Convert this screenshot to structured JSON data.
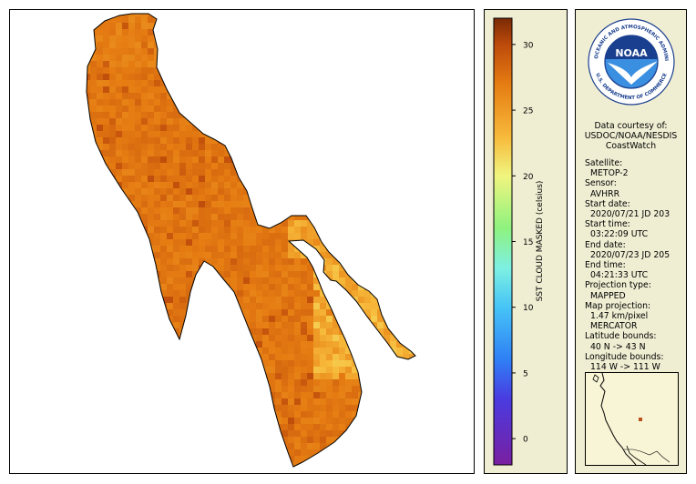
{
  "map": {
    "fill_color": "#d9650f",
    "coastline_color": "#000000"
  },
  "colorbar": {
    "label": "SST CLOUD MASKED (celsius)",
    "min": -2,
    "max": 32,
    "ticks": [
      {
        "value": 0,
        "label": "0"
      },
      {
        "value": 5,
        "label": "5"
      },
      {
        "value": 10,
        "label": "10"
      },
      {
        "value": 15,
        "label": "15"
      },
      {
        "value": 20,
        "label": "20"
      },
      {
        "value": 25,
        "label": "25"
      },
      {
        "value": 30,
        "label": "30"
      }
    ],
    "stops": [
      {
        "value": -2,
        "color": "#7a1fa0"
      },
      {
        "value": 3,
        "color": "#4a3be0"
      },
      {
        "value": 6,
        "color": "#2f7ff5"
      },
      {
        "value": 10,
        "color": "#46c4f6"
      },
      {
        "value": 13,
        "color": "#7ef0e2"
      },
      {
        "value": 16,
        "color": "#8ef27f"
      },
      {
        "value": 20,
        "color": "#f0f57f"
      },
      {
        "value": 23,
        "color": "#f7b93a"
      },
      {
        "value": 27,
        "color": "#e57c12"
      },
      {
        "value": 30,
        "color": "#bd4a0b"
      },
      {
        "value": 32,
        "color": "#7a2a06"
      }
    ]
  },
  "logo": {
    "text": "NOAA",
    "ring_text": "NATIONAL OCEANIC AND ATMOSPHERIC ADMINISTRATION",
    "bottom_text": "U.S. DEPARTMENT OF COMMERCE",
    "colors": {
      "dark": "#1b3f8f",
      "light": "#3b8fe0",
      "ring": "#ffffff"
    }
  },
  "info": {
    "courtesy": [
      "Data courtesy of:",
      "USDOC/NOAA/NESDIS",
      "CoastWatch"
    ],
    "fields": [
      {
        "label": "Satellite:",
        "value": "METOP-2"
      },
      {
        "label": "Sensor:",
        "value": "AVHRR"
      },
      {
        "label": "Start date:",
        "value": "2020/07/21 JD 203"
      },
      {
        "label": "Start time:",
        "value": "03:22:09 UTC"
      },
      {
        "label": "End date:",
        "value": "2020/07/23 JD 205"
      },
      {
        "label": "End time:",
        "value": "04:21:33 UTC"
      },
      {
        "label": "Projection type:",
        "value": "MAPPED"
      },
      {
        "label": "Map projection:",
        "value": "1.47 km/pixel"
      },
      {
        "label": "",
        "value": "MERCATOR"
      },
      {
        "label": "Latitude bounds:",
        "value": "40 N -> 43 N"
      },
      {
        "label": "Longitude bounds:",
        "value": "114 W -> 111 W"
      }
    ]
  },
  "locator": {
    "marker_color": "#b8511e"
  }
}
